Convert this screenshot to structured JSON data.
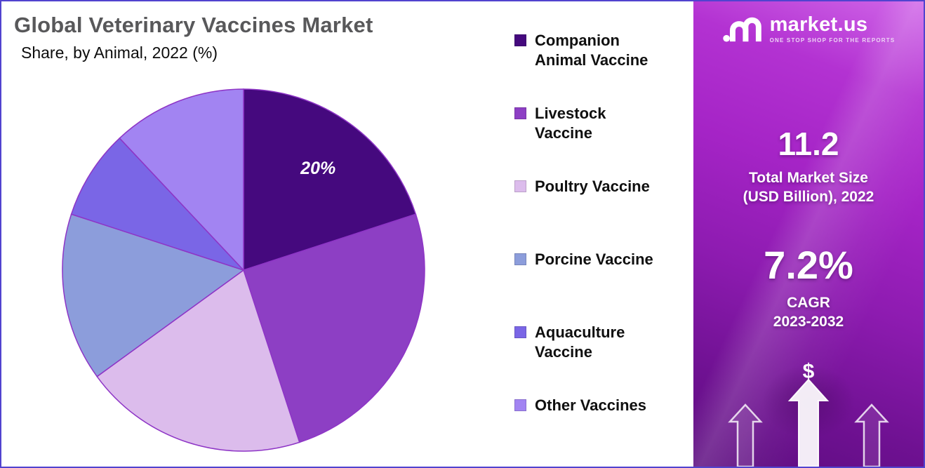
{
  "page": {
    "title": "Global Veterinary Vaccines Market",
    "subtitle": "Share, by Animal, 2022 (%)"
  },
  "chart_data": {
    "type": "pie",
    "title": "Global Veterinary Vaccines Market",
    "subtitle": "Share, by Animal, 2022 (%)",
    "unit": "%",
    "start_angle_deg": 0,
    "direction": "clockwise",
    "legend_position": "right",
    "categories": [
      "Companion Animal Vaccine",
      "Livestock Vaccine",
      "Poultry Vaccine",
      "Porcine Vaccine",
      "Aquaculture Vaccine",
      "Other Vaccines"
    ],
    "values": [
      20,
      25,
      20,
      15,
      8,
      12
    ],
    "colors": [
      "#45097e",
      "#8d3fc4",
      "#dcbcec",
      "#8c9ddb",
      "#7a66e6",
      "#a284f2"
    ],
    "data_labels": [
      "20%",
      "",
      "",
      "",
      "",
      ""
    ],
    "slice_border_color": "#8e35c6"
  },
  "legend": {
    "items": [
      {
        "label": "Companion Animal Vaccine",
        "lines": [
          "Companion",
          "Animal Vaccine"
        ],
        "color": "#45097e"
      },
      {
        "label": "Livestock Vaccine",
        "lines": [
          "Livestock",
          "Vaccine"
        ],
        "color": "#8d3fc4"
      },
      {
        "label": "Poultry Vaccine",
        "lines": [
          "Poultry Vaccine"
        ],
        "color": "#dcbcec"
      },
      {
        "label": "Porcine Vaccine",
        "lines": [
          "Porcine Vaccine"
        ],
        "color": "#8c9ddb"
      },
      {
        "label": "Aquaculture Vaccine",
        "lines": [
          "Aquaculture",
          "Vaccine"
        ],
        "color": "#7a66e6"
      },
      {
        "label": "Other Vaccines",
        "lines": [
          "Other Vaccines"
        ],
        "color": "#a284f2"
      }
    ]
  },
  "sidebar": {
    "logo": {
      "brand": "market.us",
      "tagline": "ONE STOP SHOP FOR THE REPORTS"
    },
    "market_size": {
      "value": "11.2",
      "label_line1": "Total Market Size",
      "label_line2": "(USD Billion), 2022"
    },
    "cagr": {
      "value": "7.2%",
      "label_line1": "CAGR",
      "label_line2": "2023-2032"
    },
    "dollar_symbol": "$"
  }
}
